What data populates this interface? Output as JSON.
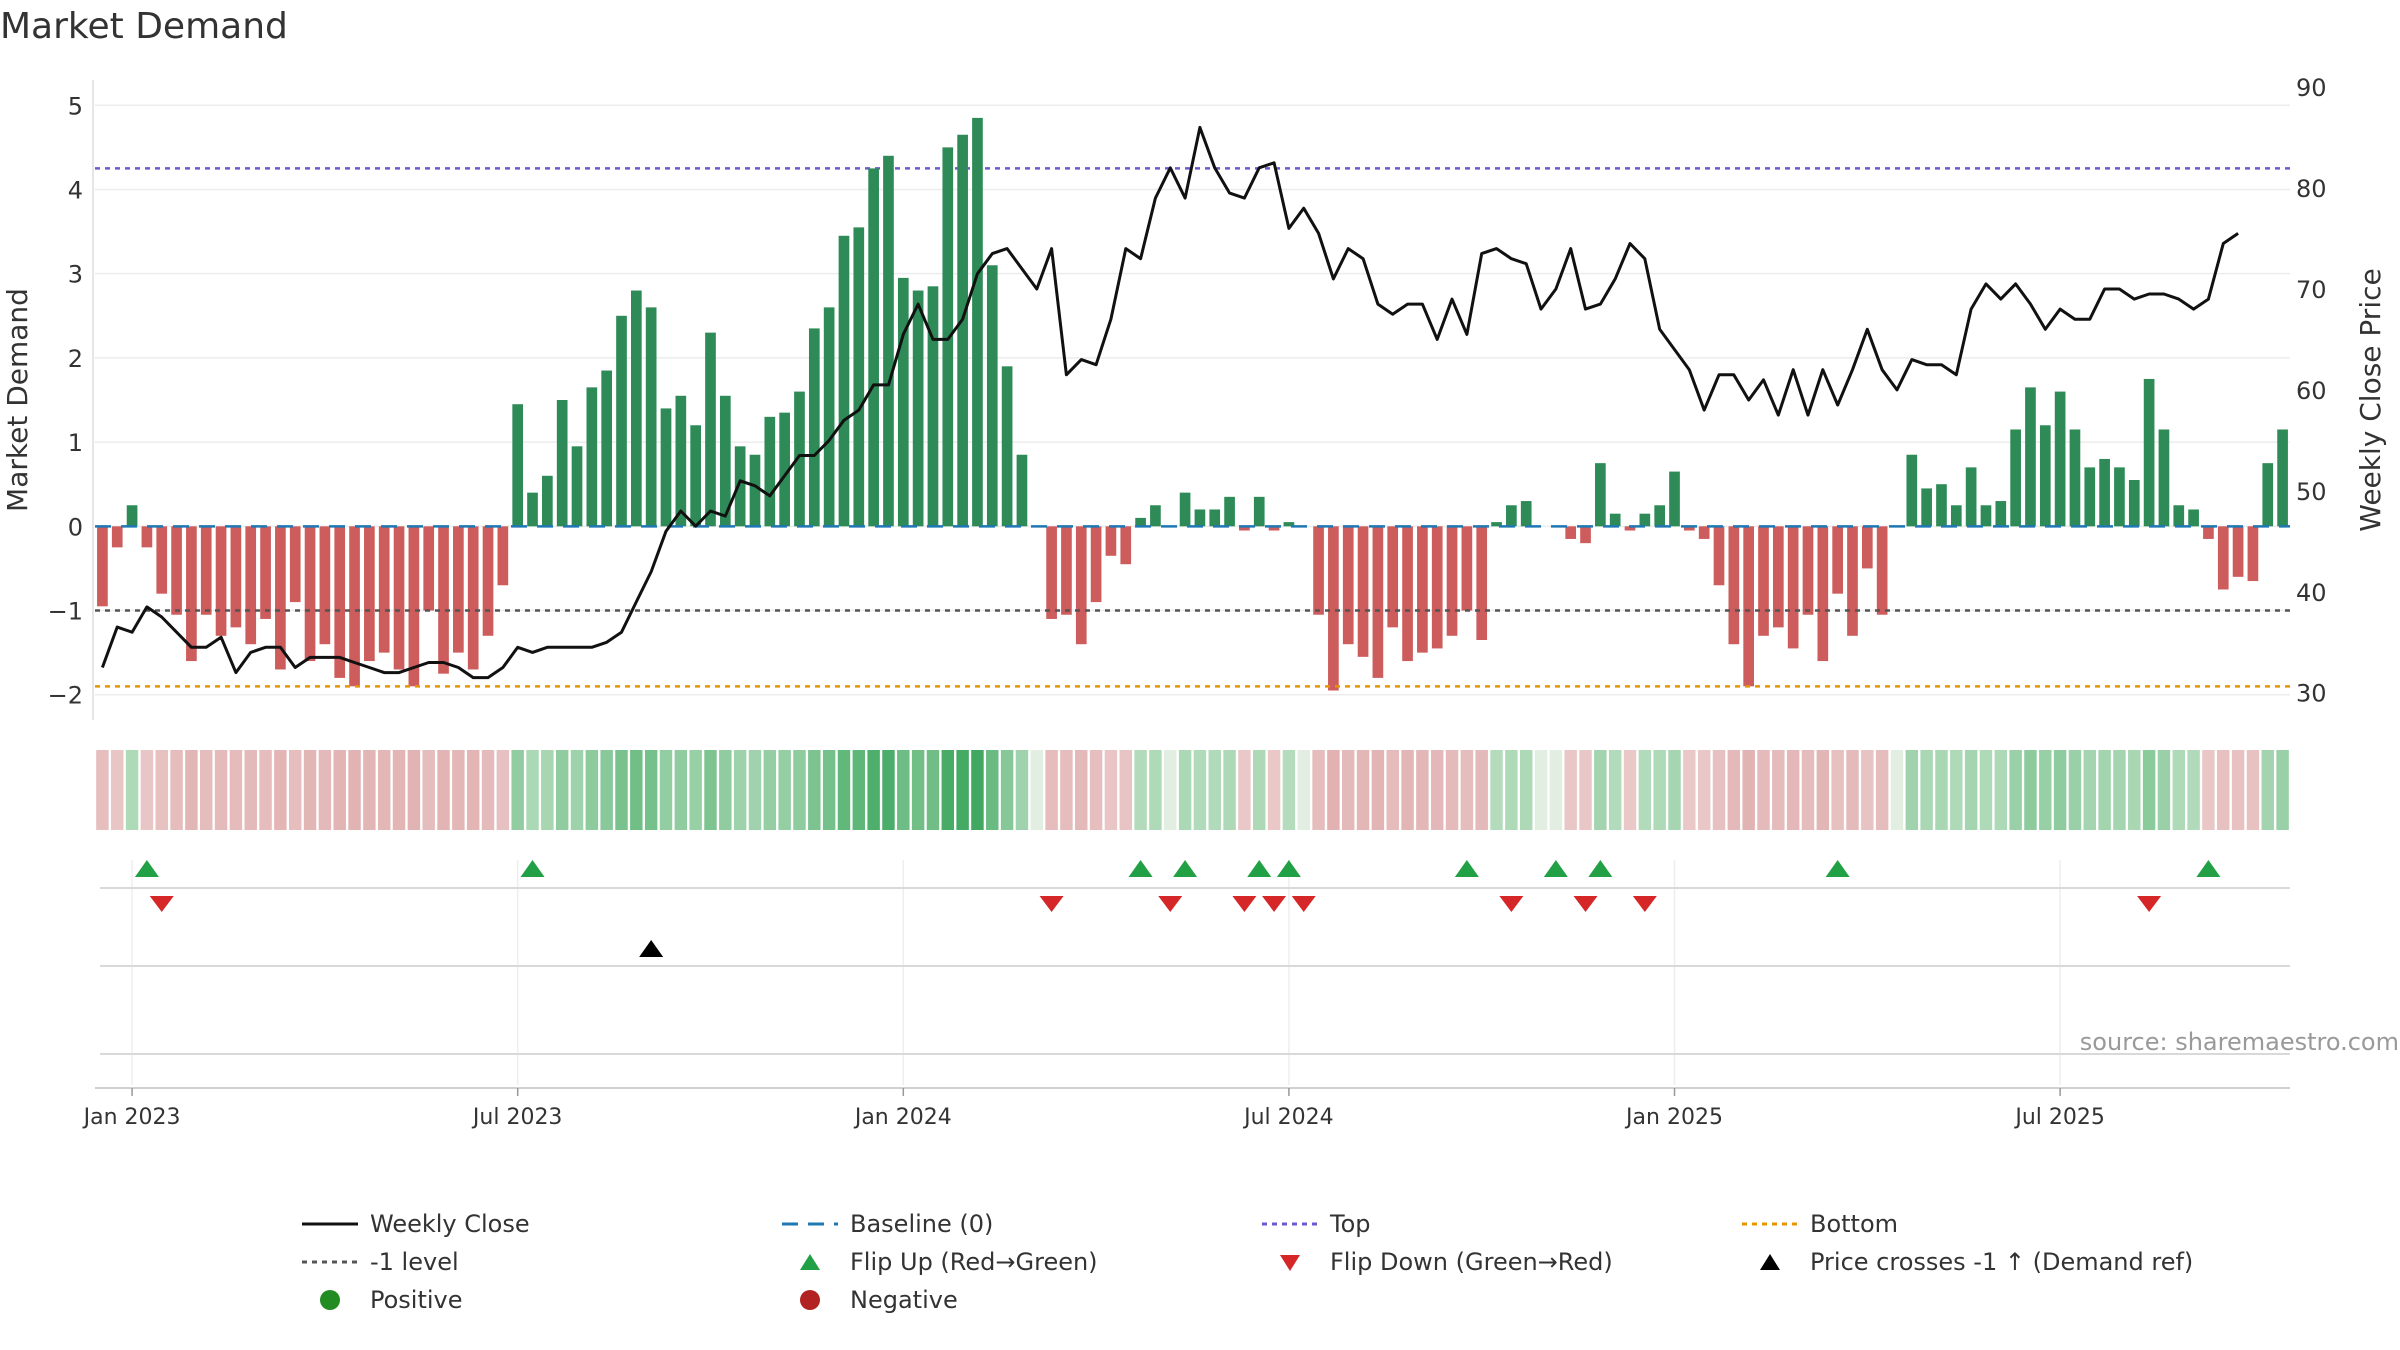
{
  "title": "Market Demand",
  "source": "source: sharemaestro.com",
  "colors": {
    "positive": "#2e8b57",
    "negative": "#cd5c5c",
    "close": "#111111",
    "baseline": "#1f77b4",
    "top": "#6a5acd",
    "bottom": "#e69500",
    "minus1": "#555555",
    "flip_up": "#22a045",
    "flip_down": "#d62728",
    "cross": "#000000"
  },
  "chart_data": {
    "type": "bar",
    "title": "Market Demand",
    "ylabel": "Market Demand",
    "y2label": "Weekly Close Price",
    "ylim": [
      -2.3,
      5.3
    ],
    "y2lim": [
      27.3,
      90.7
    ],
    "yticks": [
      5,
      4,
      3,
      2,
      1,
      0,
      -1,
      -2
    ],
    "y2ticks": [
      90,
      80,
      70,
      60,
      50,
      40,
      30
    ],
    "x_tick_labels": [
      "Jan 2023",
      "Jul 2023",
      "Jan 2024",
      "Jul 2024",
      "Jan 2025",
      "Jul 2025"
    ],
    "x_tick_weeks": [
      2,
      28,
      54,
      80,
      106,
      132
    ],
    "reference_lines": {
      "top": 4.25,
      "bottom": -1.9,
      "minus_one": -1.0,
      "baseline": 0
    },
    "demand": [
      -0.95,
      -0.25,
      0.25,
      -0.25,
      -0.8,
      -1.05,
      -1.6,
      -1.05,
      -1.3,
      -1.2,
      -1.4,
      -1.1,
      -1.7,
      -0.9,
      -1.6,
      -1.4,
      -1.8,
      -1.9,
      -1.6,
      -1.5,
      -1.7,
      -1.9,
      -1.0,
      -1.75,
      -1.5,
      -1.7,
      -1.3,
      -0.7,
      1.45,
      0.4,
      0.6,
      1.5,
      0.95,
      1.65,
      1.85,
      2.5,
      2.8,
      2.6,
      1.4,
      1.55,
      1.2,
      2.3,
      1.55,
      0.95,
      0.85,
      1.3,
      1.35,
      1.6,
      2.35,
      2.6,
      3.45,
      3.55,
      4.25,
      4.4,
      2.95,
      2.8,
      2.85,
      4.5,
      4.65,
      4.85,
      3.1,
      1.9,
      0.85,
      0,
      -1.1,
      -1.05,
      -1.4,
      -0.9,
      -0.35,
      -0.45,
      0.1,
      0.25,
      0,
      0.4,
      0.2,
      0.2,
      0.35,
      -0.05,
      0.35,
      -0.05,
      0.05,
      0,
      -1.05,
      -1.95,
      -1.4,
      -1.55,
      -1.8,
      -1.2,
      -1.6,
      -1.5,
      -1.45,
      -1.3,
      -1.0,
      -1.35,
      0.05,
      0.25,
      0.3,
      0,
      0,
      -0.15,
      -0.2,
      0.75,
      0.15,
      -0.05,
      0.15,
      0.25,
      0.65,
      -0.05,
      -0.15,
      -0.7,
      -1.4,
      -1.9,
      -1.3,
      -1.2,
      -1.45,
      -1.05,
      -1.6,
      -0.8,
      -1.3,
      -0.5,
      -1.05,
      0,
      0.85,
      0.45,
      0.5,
      0.25,
      0.7,
      0.25,
      0.3,
      1.15,
      1.65,
      1.2,
      1.6,
      1.15,
      0.7,
      0.8,
      0.7,
      0.55,
      1.75,
      1.15,
      0.25,
      0.2,
      -0.15,
      -0.75,
      -0.6,
      -0.65,
      0.75,
      1.15
    ],
    "close": [
      32.5,
      36.5,
      36,
      38.5,
      37.5,
      36,
      34.5,
      34.5,
      35.5,
      32,
      34,
      34.5,
      34.5,
      32.5,
      33.5,
      33.5,
      33.5,
      33,
      32.5,
      32,
      32,
      32.5,
      33,
      33,
      32.5,
      31.5,
      31.5,
      32.5,
      34.5,
      34,
      34.5,
      34.5,
      34.5,
      34.5,
      35,
      36,
      39,
      42,
      46,
      48,
      46.5,
      48,
      47.5,
      51,
      50.5,
      49.5,
      51.5,
      53.5,
      53.5,
      55,
      57,
      58,
      60.5,
      60.5,
      65.5,
      68.5,
      65,
      65,
      67,
      71.5,
      73.5,
      74,
      72,
      70,
      74,
      61.5,
      63,
      62.5,
      67,
      74,
      73,
      79,
      82,
      79,
      86,
      82,
      79.5,
      79,
      82,
      82.5,
      76,
      78,
      75.5,
      71,
      74,
      73,
      68.5,
      67.5,
      68.5,
      68.5,
      65,
      69,
      65.5,
      73.5,
      74,
      73,
      72.5,
      68,
      70,
      74,
      68,
      68.5,
      71,
      74.5,
      73,
      66,
      64,
      62,
      58,
      61.5,
      61.5,
      59,
      61,
      57.5,
      62,
      57.5,
      62,
      58.5,
      62,
      66,
      62,
      60,
      63,
      62.5,
      62.5,
      61.5,
      68,
      70.5,
      69,
      70.5,
      68.5,
      66,
      68,
      67,
      67,
      70,
      70,
      69,
      69.5,
      69.5,
      69,
      68,
      69,
      74.5,
      75.5
    ],
    "flip_up_weeks": [
      3,
      29,
      70,
      73,
      78,
      80,
      92,
      98,
      101,
      117,
      142
    ],
    "flip_down_weeks": [
      4,
      64,
      72,
      77,
      79,
      81,
      95,
      100,
      104,
      138
    ],
    "price_cross_weeks": [
      37
    ]
  },
  "legend": [
    {
      "label": "Weekly Close",
      "kind": "solid-line",
      "color": "#111111"
    },
    {
      "label": "Baseline (0)",
      "kind": "dash-line",
      "color": "#1f77b4"
    },
    {
      "label": "Top",
      "kind": "dot-line",
      "color": "#6a5acd"
    },
    {
      "label": "Bottom",
      "kind": "dot-line",
      "color": "#e69500"
    },
    {
      "label": "-1 level",
      "kind": "dot-line",
      "color": "#555555"
    },
    {
      "label": "Flip Up (Red→Green)",
      "kind": "triangle-up",
      "color": "#22a045"
    },
    {
      "label": "Flip Down (Green→Red)",
      "kind": "triangle-down",
      "color": "#d62728"
    },
    {
      "label": "Price crosses -1 ↑ (Demand ref)",
      "kind": "triangle-up",
      "color": "#000000"
    },
    {
      "label": "Positive",
      "kind": "dot",
      "color": "#228b22"
    },
    {
      "label": "Negative",
      "kind": "dot",
      "color": "#b22222"
    }
  ]
}
